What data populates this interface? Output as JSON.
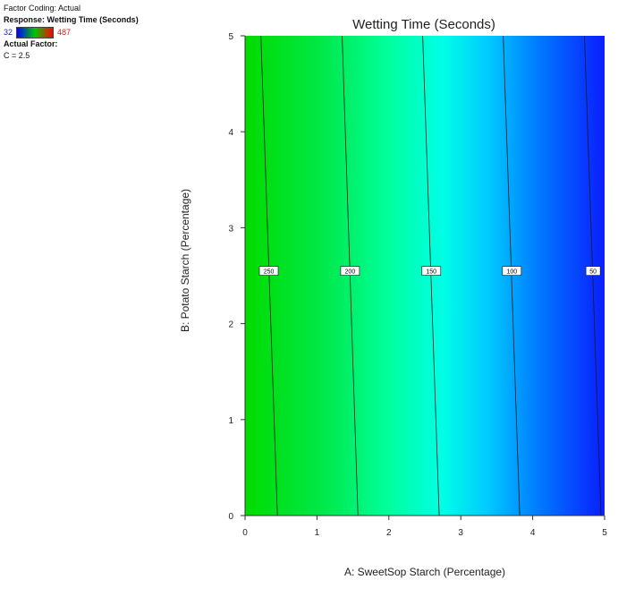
{
  "legend": {
    "factor_coding": "Factor Coding: Actual",
    "response_label": "Response: Wetting Time (Seconds)",
    "scale_min": "32",
    "scale_max": "487",
    "actual_factor_heading": "Actual Factor:",
    "actual_factor_value": "C = 2.5",
    "colors": [
      "#0000ff",
      "#00c800",
      "#ff0000"
    ]
  },
  "chart_data": {
    "type": "contour",
    "title": "Wetting Time (Seconds)",
    "xlabel": "A: SweetSop Starch (Percentage)",
    "ylabel": "B: Potato Starch  (Percentage)",
    "xlim": [
      0,
      5
    ],
    "ylim": [
      0,
      5
    ],
    "xticks": [
      "0",
      "1",
      "2",
      "3",
      "4",
      "5"
    ],
    "yticks": [
      "0",
      "1",
      "2",
      "3",
      "4",
      "5"
    ],
    "color_range": [
      32,
      487
    ],
    "contours": [
      {
        "level": "250",
        "x_at_y0": 0.45,
        "x_at_y5": 0.22,
        "label_x": 0.33
      },
      {
        "level": "200",
        "x_at_y0": 1.57,
        "x_at_y5": 1.35,
        "label_x": 1.46
      },
      {
        "level": "150",
        "x_at_y0": 2.7,
        "x_at_y5": 2.47,
        "label_x": 2.59
      },
      {
        "level": "100",
        "x_at_y0": 3.82,
        "x_at_y5": 3.59,
        "label_x": 3.71
      },
      {
        "level": "50",
        "x_at_y0": 4.95,
        "x_at_y5": 4.72,
        "label_x": 4.84
      }
    ],
    "contour_label_y": 2.55
  }
}
